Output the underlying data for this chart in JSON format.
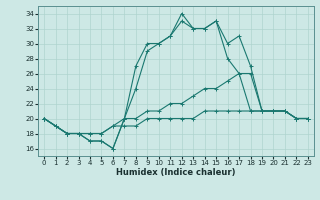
{
  "title": "",
  "xlabel": "Humidex (Indice chaleur)",
  "ylabel": "",
  "bg_color": "#cde8e5",
  "line_color": "#1a7870",
  "grid_color": "#afd4cf",
  "xlim": [
    -0.5,
    23.5
  ],
  "ylim": [
    15,
    35
  ],
  "xticks": [
    0,
    1,
    2,
    3,
    4,
    5,
    6,
    7,
    8,
    9,
    10,
    11,
    12,
    13,
    14,
    15,
    16,
    17,
    18,
    19,
    20,
    21,
    22,
    23
  ],
  "yticks": [
    16,
    18,
    20,
    22,
    24,
    26,
    28,
    30,
    32,
    34
  ],
  "lines": [
    {
      "x": [
        0,
        1,
        2,
        3,
        4,
        5,
        6,
        7,
        8,
        9,
        10,
        11,
        12,
        13,
        14,
        15,
        16,
        17,
        18,
        19,
        20,
        21,
        22,
        23
      ],
      "y": [
        20,
        19,
        18,
        18,
        17,
        17,
        16,
        20,
        24,
        29,
        30,
        31,
        33,
        32,
        32,
        33,
        30,
        31,
        27,
        21,
        21,
        21,
        20,
        20
      ]
    },
    {
      "x": [
        0,
        2,
        3,
        4,
        5,
        6,
        7,
        8,
        9,
        10,
        11,
        12,
        13,
        14,
        15,
        16,
        17,
        18,
        19,
        20,
        21,
        22,
        23
      ],
      "y": [
        20,
        18,
        18,
        17,
        17,
        16,
        20,
        27,
        30,
        30,
        31,
        34,
        32,
        32,
        33,
        28,
        26,
        21,
        21,
        21,
        21,
        20,
        20
      ]
    },
    {
      "x": [
        0,
        1,
        2,
        3,
        4,
        5,
        6,
        7,
        8,
        9,
        10,
        11,
        12,
        13,
        14,
        15,
        16,
        17,
        18,
        19,
        20,
        21,
        22,
        23
      ],
      "y": [
        20,
        19,
        18,
        18,
        18,
        18,
        19,
        20,
        20,
        21,
        21,
        22,
        22,
        23,
        24,
        24,
        25,
        26,
        26,
        21,
        21,
        21,
        20,
        20
      ]
    },
    {
      "x": [
        0,
        1,
        2,
        3,
        4,
        5,
        6,
        7,
        8,
        9,
        10,
        11,
        12,
        13,
        14,
        15,
        16,
        17,
        18,
        19,
        20,
        21,
        22,
        23
      ],
      "y": [
        20,
        19,
        18,
        18,
        18,
        18,
        19,
        19,
        19,
        20,
        20,
        20,
        20,
        20,
        21,
        21,
        21,
        21,
        21,
        21,
        21,
        21,
        20,
        20
      ]
    }
  ]
}
